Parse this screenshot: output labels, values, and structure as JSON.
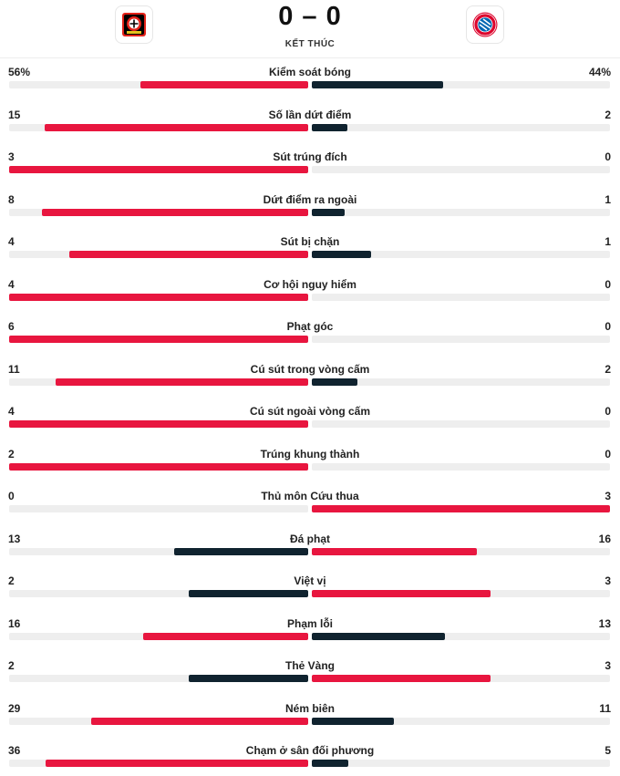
{
  "match": {
    "home_logo_icon": "bayer-leverkusen-crest-icon",
    "away_logo_icon": "bayern-munich-crest-icon",
    "score": "0 – 0",
    "status": "KẾT THÚC"
  },
  "colors": {
    "leader": "#e8163f",
    "trailer": "#10232f",
    "track": "#eeeeee"
  },
  "stats": [
    {
      "label": "Kiểm soát bóng",
      "home": "56%",
      "away": "44%",
      "home_fraction": 0.56,
      "away_fraction": 0.44,
      "leader": "home"
    },
    {
      "label": "Số lần dứt điểm",
      "home": "15",
      "away": "2",
      "home_fraction": 0.882,
      "away_fraction": 0.118,
      "leader": "home"
    },
    {
      "label": "Sút trúng đích",
      "home": "3",
      "away": "0",
      "home_fraction": 1.0,
      "away_fraction": 0.0,
      "leader": "home"
    },
    {
      "label": "Dứt điểm ra ngoài",
      "home": "8",
      "away": "1",
      "home_fraction": 0.889,
      "away_fraction": 0.111,
      "leader": "home"
    },
    {
      "label": "Sút bị chặn",
      "home": "4",
      "away": "1",
      "home_fraction": 0.8,
      "away_fraction": 0.2,
      "leader": "home"
    },
    {
      "label": "Cơ hội nguy hiểm",
      "home": "4",
      "away": "0",
      "home_fraction": 1.0,
      "away_fraction": 0.0,
      "leader": "home"
    },
    {
      "label": "Phạt góc",
      "home": "6",
      "away": "0",
      "home_fraction": 1.0,
      "away_fraction": 0.0,
      "leader": "home"
    },
    {
      "label": "Cú sút trong vòng cấm",
      "home": "11",
      "away": "2",
      "home_fraction": 0.846,
      "away_fraction": 0.154,
      "leader": "home"
    },
    {
      "label": "Cú sút ngoài vòng cấm",
      "home": "4",
      "away": "0",
      "home_fraction": 1.0,
      "away_fraction": 0.0,
      "leader": "home"
    },
    {
      "label": "Trúng khung thành",
      "home": "2",
      "away": "0",
      "home_fraction": 1.0,
      "away_fraction": 0.0,
      "leader": "home"
    },
    {
      "label": "Thủ môn Cứu thua",
      "home": "0",
      "away": "3",
      "home_fraction": 0.0,
      "away_fraction": 1.0,
      "leader": "away"
    },
    {
      "label": "Đá phạt",
      "home": "13",
      "away": "16",
      "home_fraction": 0.448,
      "away_fraction": 0.552,
      "leader": "away"
    },
    {
      "label": "Việt vị",
      "home": "2",
      "away": "3",
      "home_fraction": 0.4,
      "away_fraction": 0.6,
      "leader": "away"
    },
    {
      "label": "Phạm lỗi",
      "home": "16",
      "away": "13",
      "home_fraction": 0.552,
      "away_fraction": 0.448,
      "leader": "home"
    },
    {
      "label": "Thẻ Vàng",
      "home": "2",
      "away": "3",
      "home_fraction": 0.4,
      "away_fraction": 0.6,
      "leader": "away"
    },
    {
      "label": "Ném biên",
      "home": "29",
      "away": "11",
      "home_fraction": 0.725,
      "away_fraction": 0.275,
      "leader": "home"
    },
    {
      "label": "Chạm ở sân đối phương",
      "home": "36",
      "away": "5",
      "home_fraction": 0.878,
      "away_fraction": 0.122,
      "leader": "home"
    }
  ]
}
